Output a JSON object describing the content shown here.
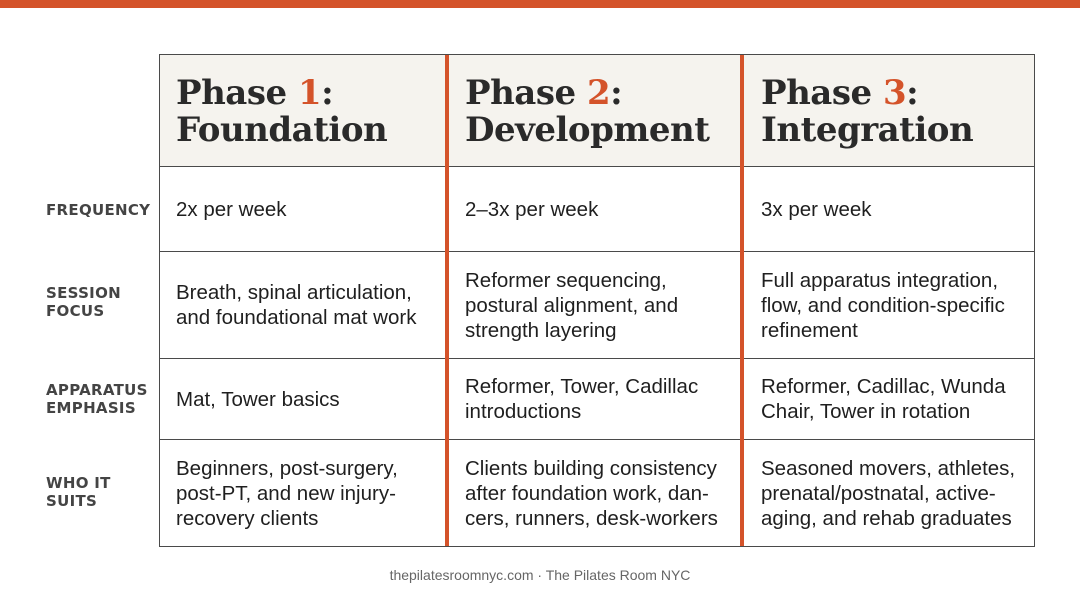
{
  "header": {
    "phases": [
      {
        "prefix": "Phase ",
        "number": "1",
        "suffix": ":",
        "name": "Foundation"
      },
      {
        "prefix": "Phase ",
        "number": "2",
        "suffix": ":",
        "name": "Development"
      },
      {
        "prefix": "Phase ",
        "number": "3",
        "suffix": ":",
        "name": "Integration"
      }
    ]
  },
  "rows": [
    {
      "label": "FREQUENCY",
      "cells": [
        "2x per week",
        "2–3x per week",
        "3x per week"
      ]
    },
    {
      "label": "SESSION FOCUS",
      "cells": [
        "Breath, spinal articulation, and foundational mat work",
        "Reformer sequencing, postural alignment, and strength layering",
        "Full apparatus integration, flow, and condition-specific refinement"
      ]
    },
    {
      "label": "APPARATUS EMPHASIS",
      "cells": [
        "Mat, Tower basics",
        "Reformer, Tower, Cadillac introductions",
        "Reformer, Cadillac, Wunda Chair, Tower in rotation"
      ]
    },
    {
      "label": "WHO IT SUITS",
      "cells": [
        "Beginners, post-surgery, post-PT, and new injury-recovery clients",
        "Clients building consistency after foundation work, dan- cers, runners, desk-workers",
        "Seasoned movers, athletes, prenatal/postnatal, active- aging, and rehab graduates"
      ]
    }
  ],
  "footer": {
    "text": "thepilatesroomnyc.com · The Pilates Room NYC"
  },
  "colors": {
    "accent": "#d4532a",
    "header_bg": "#f5f3ee",
    "border": "#4a4a4a"
  }
}
